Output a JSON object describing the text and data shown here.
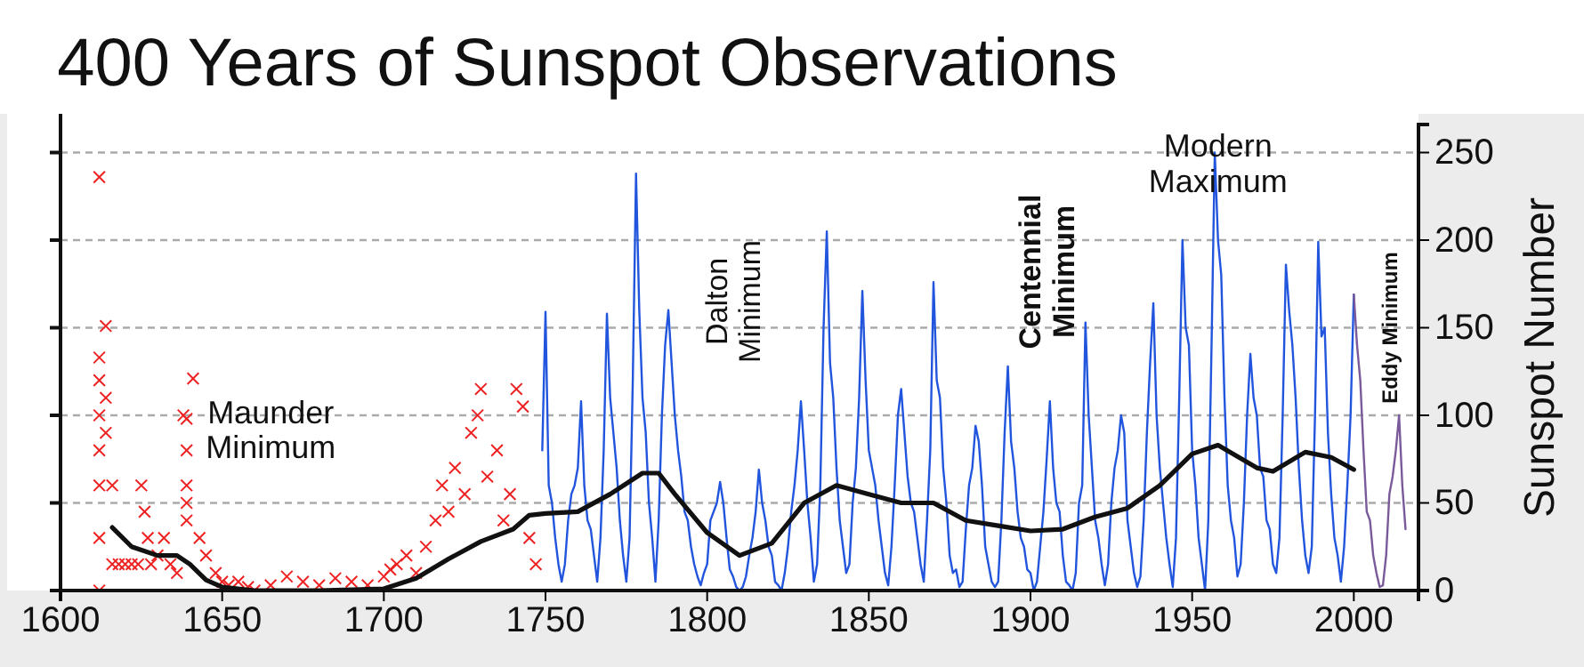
{
  "chart_data": {
    "type": "line",
    "title": "400 Years of Sunspot Observations",
    "ylabel": "Sunspot Number",
    "xlim": [
      1600,
      2020
    ],
    "xticks": [
      1600,
      1650,
      1700,
      1750,
      1800,
      1850,
      1900,
      1950,
      2000
    ],
    "ylim": [
      0,
      266
    ],
    "yticks": [
      0,
      50,
      100,
      150,
      200,
      250
    ],
    "grid": "y",
    "annotations": [
      "Maunder Minimum",
      "Dalton Minimum",
      "Centennial Minimum",
      "Modern Maximum",
      "Eddy Minimum"
    ],
    "series": [
      {
        "type": "scatter",
        "marker": "cross",
        "color": "#ee2222",
        "x": [
          1612,
          1612,
          1612,
          1612,
          1612,
          1612,
          1612,
          1612,
          1614,
          1614,
          1614,
          1616,
          1616,
          1618,
          1620,
          1622,
          1624,
          1625,
          1626,
          1627,
          1628,
          1630,
          1632,
          1634,
          1636,
          1638,
          1639,
          1639,
          1639,
          1639,
          1639,
          1641,
          1643,
          1645,
          1648,
          1650,
          1652,
          1655,
          1658,
          1660,
          1665,
          1670,
          1675,
          1680,
          1685,
          1690,
          1695,
          1700,
          1702,
          1704,
          1707,
          1710,
          1713,
          1716,
          1718,
          1720,
          1722,
          1725,
          1727,
          1729,
          1730,
          1732,
          1735,
          1737,
          1739,
          1741,
          1743,
          1745,
          1747
        ],
        "values": [
          236,
          133,
          120,
          100,
          80,
          60,
          30,
          0,
          151,
          110,
          90,
          60,
          15,
          15,
          15,
          15,
          15,
          60,
          45,
          30,
          15,
          20,
          30,
          15,
          10,
          100,
          98,
          80,
          60,
          50,
          40,
          121,
          30,
          20,
          10,
          5,
          3,
          5,
          2,
          0,
          3,
          8,
          5,
          3,
          7,
          5,
          3,
          8,
          12,
          15,
          20,
          10,
          25,
          40,
          60,
          45,
          70,
          55,
          90,
          100,
          115,
          65,
          80,
          40,
          55,
          115,
          105,
          30,
          15
        ]
      },
      {
        "color": "#2255dd",
        "x": [
          1749,
          1750,
          1751,
          1752,
          1753,
          1754,
          1755,
          1756,
          1757,
          1758,
          1759,
          1760,
          1761,
          1762,
          1763,
          1764,
          1765,
          1766,
          1767,
          1768,
          1769,
          1770,
          1771,
          1772,
          1773,
          1774,
          1775,
          1776,
          1777,
          1778,
          1779,
          1780,
          1781,
          1782,
          1783,
          1784,
          1785,
          1786,
          1787,
          1788,
          1789,
          1790,
          1791,
          1792,
          1793,
          1794,
          1795,
          1796,
          1797,
          1798,
          1799,
          1800,
          1801,
          1802,
          1803,
          1804,
          1805,
          1806,
          1807,
          1808,
          1809,
          1810,
          1811,
          1812,
          1813,
          1814,
          1815,
          1816,
          1817,
          1818,
          1819,
          1820,
          1821,
          1822,
          1823,
          1824,
          1825,
          1826,
          1827,
          1828,
          1829,
          1830,
          1831,
          1832,
          1833,
          1834,
          1835,
          1836,
          1837,
          1838,
          1839,
          1840,
          1841,
          1842,
          1843,
          1844,
          1845,
          1846,
          1847,
          1848,
          1849,
          1850,
          1851,
          1852,
          1853,
          1854,
          1855,
          1856,
          1857,
          1858,
          1859,
          1860,
          1861,
          1862,
          1863,
          1864,
          1865,
          1866,
          1867,
          1868,
          1869,
          1870,
          1871,
          1872,
          1873,
          1874,
          1875,
          1876,
          1877,
          1878,
          1879,
          1880,
          1881,
          1882,
          1883,
          1884,
          1885,
          1886,
          1887,
          1888,
          1889,
          1890,
          1891,
          1892,
          1893,
          1894,
          1895,
          1896,
          1897,
          1898,
          1899,
          1900,
          1901,
          1902,
          1903,
          1904,
          1905,
          1906,
          1907,
          1908,
          1909,
          1910,
          1911,
          1912,
          1913,
          1914,
          1915,
          1916,
          1917,
          1918,
          1919,
          1920,
          1921,
          1922,
          1923,
          1924,
          1925,
          1926,
          1927,
          1928,
          1929,
          1930,
          1931,
          1932,
          1933,
          1934,
          1935,
          1936,
          1937,
          1938,
          1939,
          1940,
          1941,
          1942,
          1943,
          1944,
          1945,
          1946,
          1947,
          1948,
          1949,
          1950,
          1951,
          1952,
          1953,
          1954,
          1955,
          1956,
          1957,
          1958,
          1959,
          1960,
          1961,
          1962,
          1963,
          1964,
          1965,
          1966,
          1967,
          1968,
          1969,
          1970,
          1971,
          1972,
          1973,
          1974,
          1975,
          1976,
          1977,
          1978,
          1979,
          1980,
          1981,
          1982,
          1983,
          1984,
          1985,
          1986,
          1987,
          1988,
          1989,
          1990,
          1991,
          1992,
          1993,
          1994,
          1995,
          1996,
          1997,
          1998,
          1999,
          2000
        ],
        "values": [
          80,
          159,
          60,
          50,
          30,
          15,
          5,
          15,
          40,
          55,
          60,
          70,
          108,
          60,
          40,
          35,
          20,
          5,
          30,
          80,
          158,
          110,
          90,
          70,
          40,
          20,
          5,
          30,
          120,
          238,
          160,
          110,
          90,
          50,
          30,
          5,
          40,
          100,
          140,
          160,
          130,
          100,
          80,
          65,
          45,
          40,
          25,
          15,
          8,
          3,
          10,
          15,
          40,
          45,
          50,
          62,
          50,
          30,
          12,
          8,
          2,
          0,
          2,
          8,
          20,
          30,
          45,
          69,
          50,
          40,
          25,
          20,
          5,
          3,
          0,
          10,
          25,
          45,
          60,
          80,
          108,
          80,
          50,
          30,
          5,
          15,
          60,
          150,
          205,
          130,
          110,
          70,
          40,
          25,
          10,
          15,
          50,
          70,
          110,
          171,
          120,
          80,
          70,
          60,
          40,
          25,
          10,
          3,
          25,
          60,
          100,
          115,
          90,
          65,
          50,
          45,
          30,
          15,
          5,
          40,
          80,
          176,
          120,
          110,
          70,
          50,
          20,
          10,
          12,
          2,
          5,
          35,
          60,
          70,
          94,
          85,
          60,
          25,
          15,
          5,
          2,
          5,
          40,
          90,
          128,
          85,
          70,
          45,
          30,
          25,
          12,
          10,
          0,
          5,
          25,
          45,
          75,
          108,
          70,
          50,
          45,
          20,
          5,
          3,
          0,
          10,
          50,
          60,
          153,
          100,
          70,
          40,
          30,
          15,
          3,
          15,
          50,
          70,
          80,
          100,
          90,
          40,
          25,
          10,
          2,
          8,
          40,
          90,
          130,
          164,
          100,
          70,
          50,
          30,
          15,
          2,
          30,
          110,
          200,
          150,
          140,
          80,
          60,
          30,
          15,
          0,
          40,
          140,
          250,
          200,
          180,
          110,
          60,
          40,
          30,
          8,
          15,
          50,
          100,
          135,
          110,
          100,
          70,
          65,
          40,
          35,
          15,
          10,
          30,
          100,
          186,
          160,
          140,
          110,
          70,
          40,
          20,
          10,
          25,
          100,
          199,
          145,
          150,
          90,
          55,
          30,
          20,
          5,
          25,
          60,
          100,
          169
        ]
      },
      {
        "color": "#7a5a9a",
        "x": [
          2000,
          2001,
          2002,
          2003,
          2004,
          2005,
          2006,
          2007,
          2008,
          2009,
          2010,
          2011,
          2012,
          2013,
          2014,
          2015,
          2016
        ],
        "values": [
          169,
          140,
          120,
          80,
          45,
          40,
          20,
          10,
          2,
          3,
          20,
          55,
          65,
          80,
          100,
          60,
          35
        ]
      },
      {
        "color": "#111111",
        "x": [
          1616,
          1622,
          1630,
          1636,
          1640,
          1645,
          1650,
          1660,
          1680,
          1700,
          1710,
          1720,
          1730,
          1740,
          1745,
          1750,
          1760,
          1770,
          1780,
          1785,
          1790,
          1800,
          1810,
          1820,
          1830,
          1840,
          1850,
          1860,
          1870,
          1880,
          1890,
          1900,
          1910,
          1920,
          1930,
          1940,
          1950,
          1958,
          1970,
          1975,
          1985,
          1993,
          2000
        ],
        "values": [
          36,
          25,
          20,
          20,
          15,
          6,
          2,
          0,
          0,
          1,
          7,
          18,
          28,
          35,
          43,
          44,
          45,
          55,
          67,
          67,
          55,
          33,
          20,
          27,
          50,
          60,
          55,
          50,
          50,
          40,
          37,
          34,
          35,
          42,
          47,
          60,
          78,
          83,
          70,
          68,
          79,
          76,
          69
        ]
      }
    ]
  }
}
